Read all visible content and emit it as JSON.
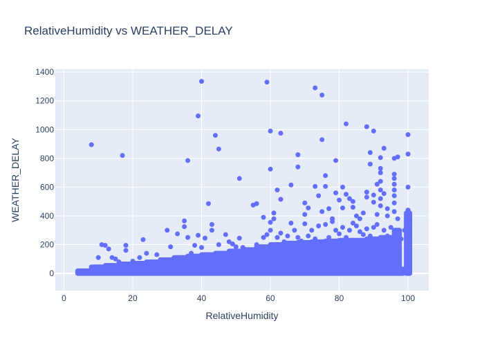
{
  "chart_data": {
    "type": "scatter",
    "title": "RelativeHumidity vs WEATHER_DELAY",
    "xlabel": "RelativeHumidity",
    "ylabel": "WEATHER_DELAY",
    "xlim": [
      -2.5,
      106
    ],
    "ylim": [
      -120,
      1420
    ],
    "x_ticks": [
      0,
      20,
      40,
      60,
      80,
      100
    ],
    "y_ticks": [
      0,
      200,
      400,
      600,
      800,
      1000,
      1200,
      1400
    ],
    "grid": true,
    "legend": "none",
    "marker_color": "#636efa",
    "plot_background": "#e5ecf6",
    "points": [
      [
        8,
        895
      ],
      [
        17,
        820
      ],
      [
        36,
        785
      ],
      [
        39,
        1095
      ],
      [
        40,
        1335
      ],
      [
        42,
        485
      ],
      [
        44,
        960
      ],
      [
        45,
        865
      ],
      [
        51,
        660
      ],
      [
        55,
        475
      ],
      [
        56,
        485
      ],
      [
        58,
        390
      ],
      [
        59,
        1330
      ],
      [
        60,
        990
      ],
      [
        60,
        725
      ],
      [
        60,
        355
      ],
      [
        61,
        420
      ],
      [
        62,
        580
      ],
      [
        63,
        515
      ],
      [
        63,
        975
      ],
      [
        66,
        615
      ],
      [
        66,
        350
      ],
      [
        68,
        825
      ],
      [
        68,
        740
      ],
      [
        70,
        490
      ],
      [
        70,
        410
      ],
      [
        71,
        455
      ],
      [
        73,
        1290
      ],
      [
        73,
        605
      ],
      [
        74,
        540
      ],
      [
        75,
        1240
      ],
      [
        75,
        930
      ],
      [
        75,
        430
      ],
      [
        76,
        680
      ],
      [
        76,
        605
      ],
      [
        77,
        450
      ],
      [
        78,
        380
      ],
      [
        79,
        785
      ],
      [
        79,
        560
      ],
      [
        80,
        510
      ],
      [
        81,
        600
      ],
      [
        81,
        455
      ],
      [
        82,
        1040
      ],
      [
        82,
        550
      ],
      [
        83,
        520
      ],
      [
        84,
        500
      ],
      [
        84,
        460
      ],
      [
        85,
        400
      ],
      [
        86,
        380
      ],
      [
        87,
        420
      ],
      [
        88,
        1020
      ],
      [
        88,
        565
      ],
      [
        88,
        530
      ],
      [
        89,
        840
      ],
      [
        89,
        760
      ],
      [
        90,
        990
      ],
      [
        90,
        545
      ],
      [
        90,
        495
      ],
      [
        91,
        620
      ],
      [
        91,
        410
      ],
      [
        92,
        805
      ],
      [
        92,
        730
      ],
      [
        92,
        700
      ],
      [
        92,
        640
      ],
      [
        92,
        580
      ],
      [
        92,
        520
      ],
      [
        92,
        470
      ],
      [
        93,
        870
      ],
      [
        93,
        555
      ],
      [
        94,
        450
      ],
      [
        94,
        400
      ],
      [
        96,
        800
      ],
      [
        96,
        690
      ],
      [
        96,
        660
      ],
      [
        96,
        620
      ],
      [
        96,
        580
      ],
      [
        96,
        540
      ],
      [
        96,
        490
      ],
      [
        96,
        430
      ],
      [
        97,
        810
      ],
      [
        97,
        380
      ],
      [
        97,
        300
      ],
      [
        100,
        965
      ],
      [
        100,
        830
      ],
      [
        100,
        600
      ],
      [
        100,
        440
      ],
      [
        10,
        110
      ],
      [
        11,
        200
      ],
      [
        12,
        195
      ],
      [
        13,
        170
      ],
      [
        14,
        110
      ],
      [
        15,
        100
      ],
      [
        16,
        80
      ],
      [
        18,
        195
      ],
      [
        18,
        160
      ],
      [
        20,
        85
      ],
      [
        22,
        110
      ],
      [
        23,
        235
      ],
      [
        24,
        140
      ],
      [
        26,
        75
      ],
      [
        27,
        130
      ],
      [
        30,
        300
      ],
      [
        31,
        185
      ],
      [
        33,
        275
      ],
      [
        34,
        110
      ],
      [
        35,
        365
      ],
      [
        35,
        325
      ],
      [
        36,
        250
      ],
      [
        37,
        140
      ],
      [
        38,
        195
      ],
      [
        39,
        265
      ],
      [
        40,
        180
      ],
      [
        41,
        245
      ],
      [
        43,
        300
      ],
      [
        43,
        340
      ],
      [
        45,
        200
      ],
      [
        47,
        270
      ],
      [
        48,
        220
      ],
      [
        49,
        205
      ],
      [
        50,
        185
      ],
      [
        51,
        245
      ],
      [
        52,
        180
      ],
      [
        54,
        160
      ],
      [
        56,
        200
      ],
      [
        58,
        250
      ],
      [
        59,
        270
      ],
      [
        60,
        300
      ],
      [
        61,
        380
      ],
      [
        62,
        250
      ],
      [
        63,
        280
      ],
      [
        64,
        220
      ],
      [
        65,
        260
      ],
      [
        66,
        200
      ],
      [
        67,
        300
      ],
      [
        68,
        250
      ],
      [
        69,
        225
      ],
      [
        70,
        345
      ],
      [
        71,
        260
      ],
      [
        72,
        300
      ],
      [
        73,
        240
      ],
      [
        74,
        330
      ],
      [
        76,
        340
      ],
      [
        77,
        250
      ],
      [
        78,
        360
      ],
      [
        79,
        300
      ],
      [
        80,
        275
      ],
      [
        81,
        320
      ],
      [
        82,
        250
      ],
      [
        83,
        300
      ],
      [
        84,
        350
      ],
      [
        85,
        330
      ],
      [
        86,
        290
      ],
      [
        87,
        270
      ],
      [
        88,
        310
      ],
      [
        89,
        260
      ],
      [
        90,
        320
      ],
      [
        91,
        340
      ],
      [
        93,
        300
      ],
      [
        94,
        260
      ],
      [
        95,
        320
      ],
      [
        97,
        260
      ],
      [
        98,
        240
      ],
      [
        99,
        300
      ],
      [
        100,
        380
      ],
      [
        100,
        330
      ],
      [
        100,
        290
      ]
    ],
    "dense_bands": [
      [
        4,
        8,
        0,
        18
      ],
      [
        8,
        12,
        0,
        45
      ],
      [
        12,
        16,
        0,
        55
      ],
      [
        16,
        20,
        0,
        65
      ],
      [
        20,
        24,
        0,
        70
      ],
      [
        24,
        28,
        0,
        80
      ],
      [
        28,
        32,
        0,
        95
      ],
      [
        32,
        36,
        0,
        110
      ],
      [
        36,
        40,
        0,
        120
      ],
      [
        40,
        44,
        0,
        130
      ],
      [
        44,
        48,
        0,
        140
      ],
      [
        48,
        52,
        0,
        155
      ],
      [
        52,
        56,
        0,
        165
      ],
      [
        56,
        60,
        0,
        185
      ],
      [
        60,
        64,
        0,
        200
      ],
      [
        64,
        68,
        0,
        210
      ],
      [
        68,
        72,
        0,
        215
      ],
      [
        72,
        76,
        0,
        220
      ],
      [
        76,
        80,
        0,
        225
      ],
      [
        80,
        84,
        0,
        230
      ],
      [
        84,
        88,
        0,
        230
      ],
      [
        88,
        92,
        0,
        240
      ],
      [
        92,
        96,
        0,
        250
      ],
      [
        96,
        97.5,
        0,
        300
      ],
      [
        97.5,
        98.5,
        0,
        30
      ],
      [
        99.5,
        100.5,
        0,
        420
      ]
    ]
  }
}
